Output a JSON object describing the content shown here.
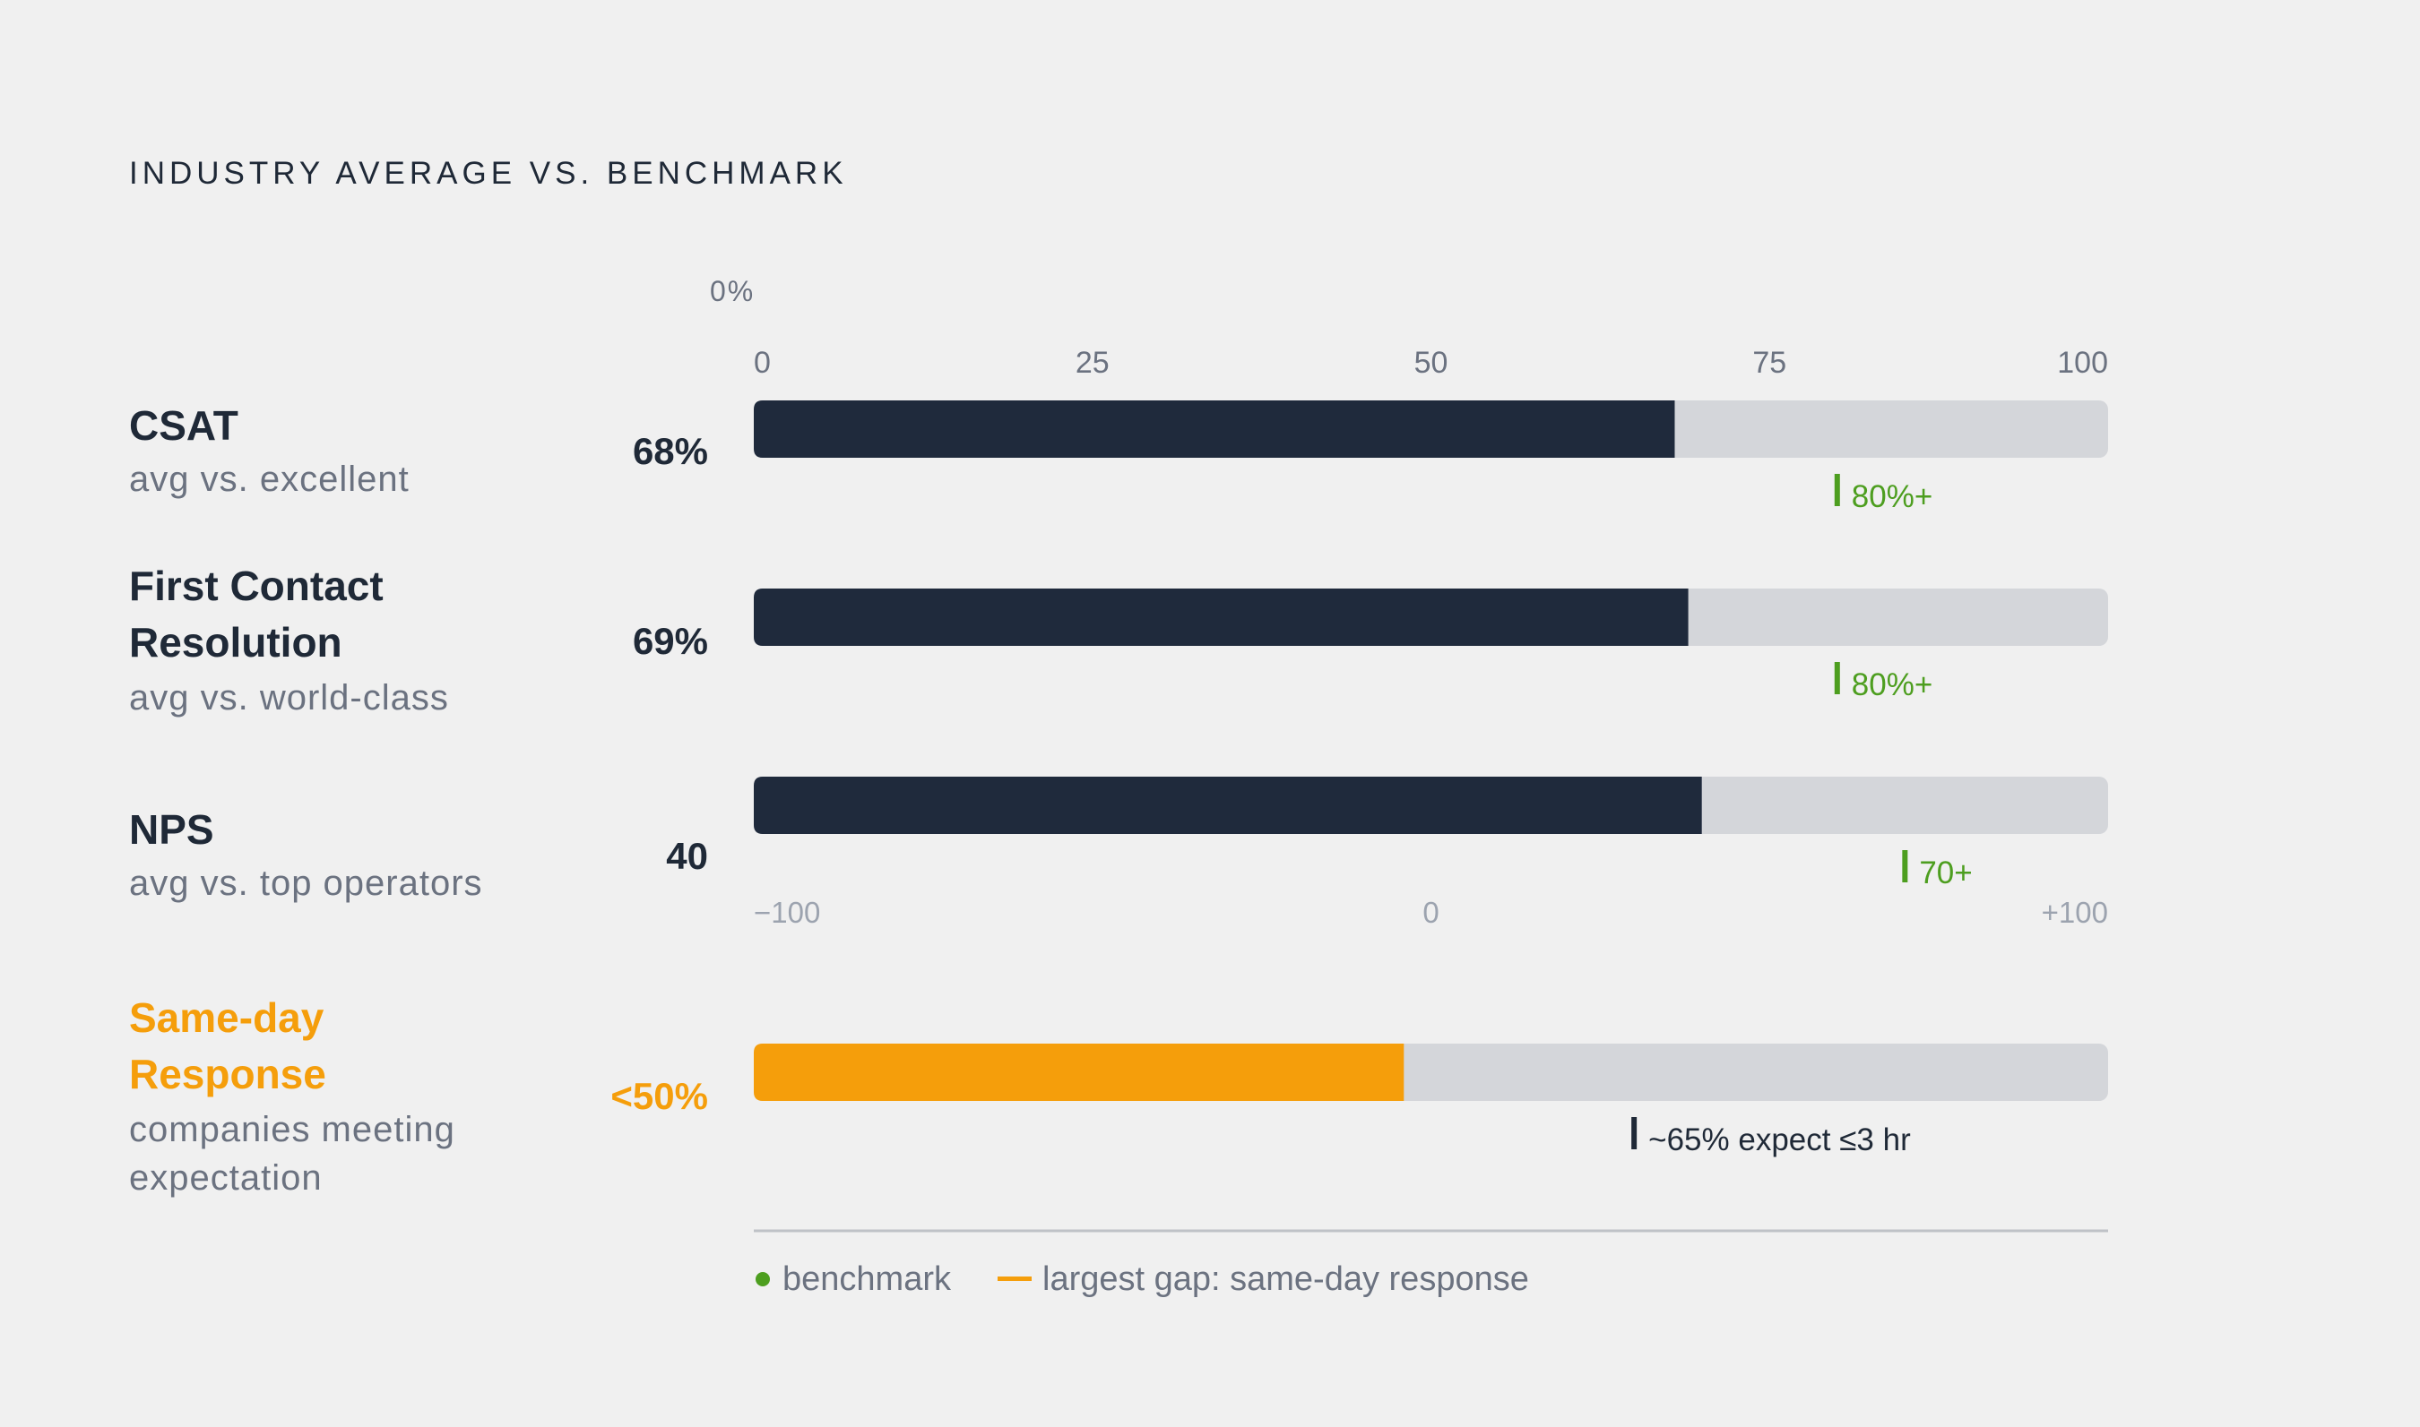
{
  "chart_data": {
    "type": "bar",
    "title": "INDUSTRY AVERAGE VS. BENCHMARK",
    "percent_axis": {
      "unit_label": "0%",
      "min": 0,
      "max": 100,
      "ticks": [
        "0",
        "25",
        "50",
        "75",
        "100"
      ]
    },
    "nps_axis": {
      "min": -100,
      "max": 100,
      "ticks": [
        "−100",
        "0",
        "+100"
      ]
    },
    "rows": [
      {
        "name_lines": [
          "CSAT"
        ],
        "sub_lines": [
          "avg vs. excellent"
        ],
        "value_label": "68%",
        "value": 68,
        "benchmark": 80,
        "benchmark_label": "80%+",
        "scale": "percent",
        "highlight": false
      },
      {
        "name_lines": [
          "First Contact",
          "Resolution"
        ],
        "sub_lines": [
          "avg vs. world-class"
        ],
        "value_label": "69%",
        "value": 69,
        "benchmark": 80,
        "benchmark_label": "80%+",
        "scale": "percent",
        "highlight": false
      },
      {
        "name_lines": [
          "NPS"
        ],
        "sub_lines": [
          "avg vs. top operators"
        ],
        "value_label": "40",
        "value": 40,
        "benchmark": 70,
        "benchmark_label": "70+",
        "scale": "nps",
        "highlight": false
      },
      {
        "name_lines": [
          "Same-day",
          "Response"
        ],
        "sub_lines": [
          "companies meeting",
          "expectation"
        ],
        "value_label": "<50%",
        "value": 48,
        "benchmark": 65,
        "benchmark_label": "~65% expect ≤3 hr",
        "scale": "percent",
        "highlight": true
      }
    ],
    "legend": [
      {
        "marker": "dot",
        "label": "benchmark"
      },
      {
        "marker": "dash",
        "label": "largest gap: same-day response"
      }
    ],
    "colors": {
      "background": "#f0f0f0",
      "bar": "#1f2a3c",
      "track": "#d4d6da",
      "highlight": "#f59e0b",
      "benchmark": "#4d9e1f",
      "text_dark": "#1f2937",
      "text_muted": "#6b7280",
      "text_light": "#9ca3af"
    }
  }
}
